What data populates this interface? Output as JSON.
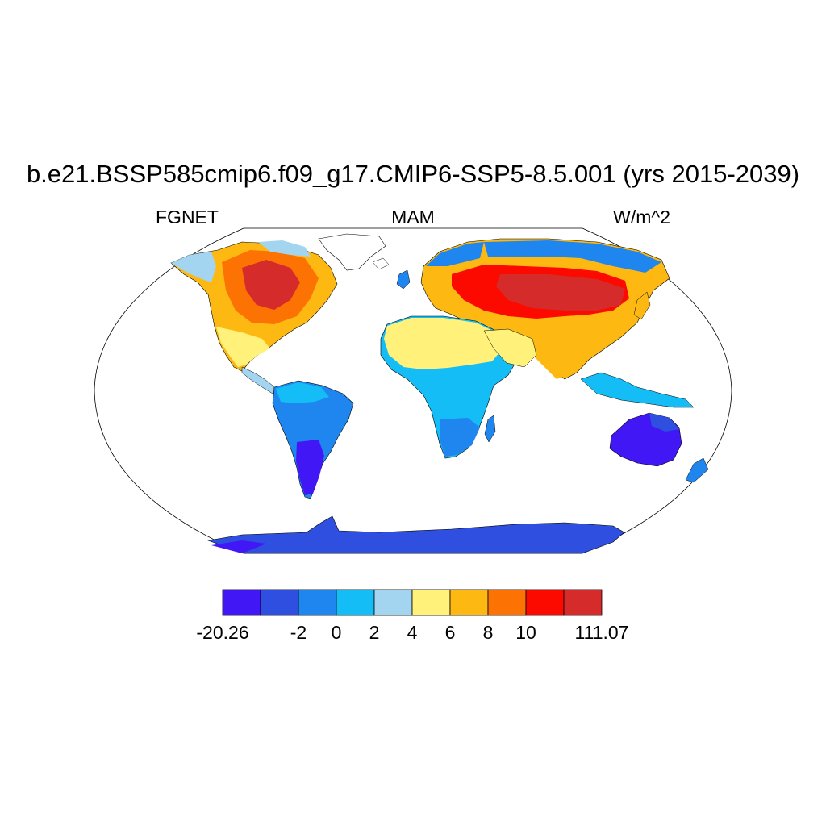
{
  "title": "b.e21.BSSP585cmip6.f09_g17.CMIP6-SSP5-8.5.001 (yrs 2015-2039)",
  "variable": "FGNET",
  "season": "MAM",
  "units": "W/m^2",
  "projection": "robinson",
  "colorbar": {
    "colors": [
      "#4118f5",
      "#2e4fe0",
      "#1f86f0",
      "#14bdf5",
      "#a3d5f0",
      "#fff17a",
      "#fdb912",
      "#fd7303",
      "#fc0a00",
      "#d62b2b"
    ],
    "tick_labels": [
      "-20.26",
      "-2",
      "0",
      "2",
      "4",
      "6",
      "8",
      "10",
      "111.07"
    ]
  },
  "ocean_color": "#ffffff",
  "coastline_color": "#000000"
}
